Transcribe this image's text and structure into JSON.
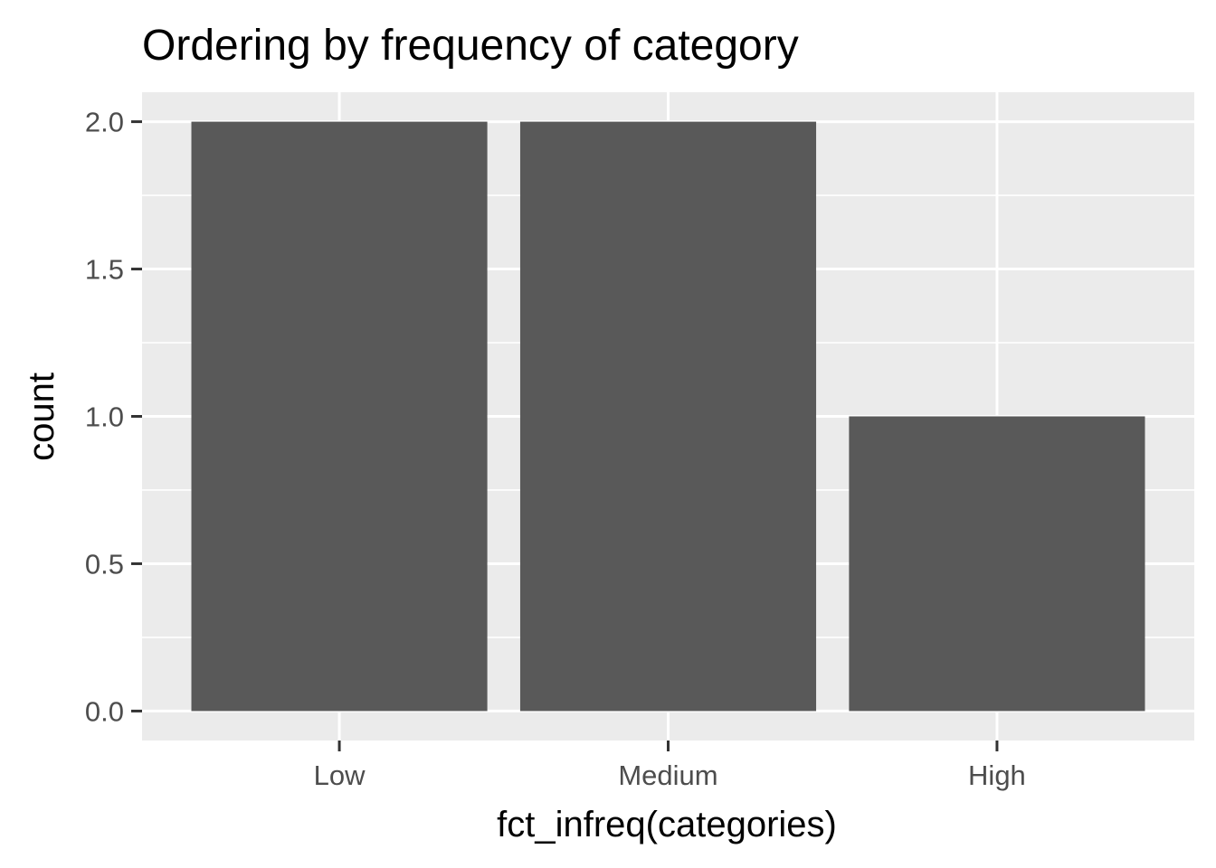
{
  "chart_data": {
    "type": "bar",
    "title": "Ordering by frequency of category",
    "xlabel": "fct_infreq(categories)",
    "ylabel": "count",
    "categories": [
      "Low",
      "Medium",
      "High"
    ],
    "values": [
      2,
      2,
      1
    ],
    "ylim": [
      -0.1,
      2.1
    ],
    "yticks": [
      0,
      0.5,
      1,
      1.5,
      2
    ],
    "ytick_labels": [
      "0.0",
      "0.5",
      "1.0",
      "1.5",
      "2.0"
    ],
    "grid": true,
    "legend": "none",
    "colors": {
      "panel": "#ebebeb",
      "grid": "#ffffff",
      "bar": "#595959",
      "tick": "#333333",
      "tick_text": "#4d4d4d"
    }
  }
}
